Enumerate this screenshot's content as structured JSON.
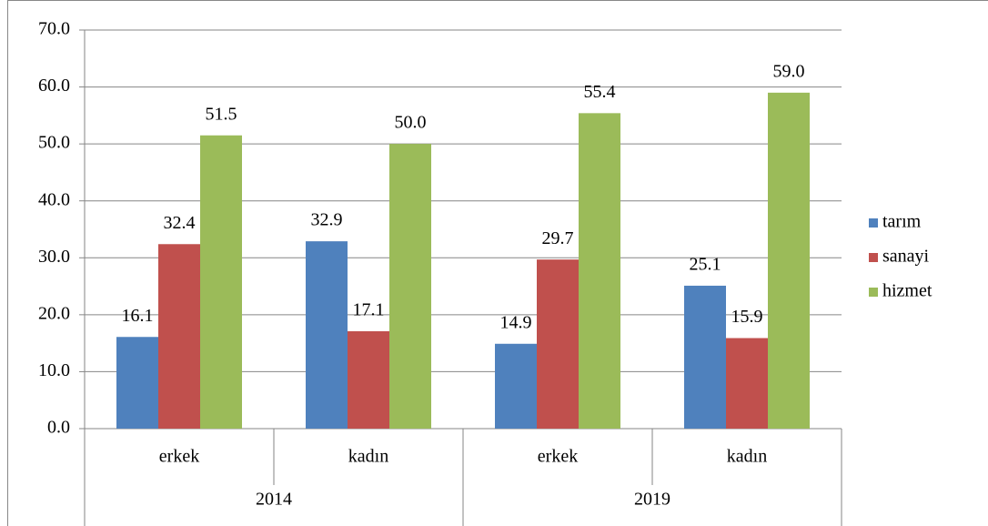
{
  "chart_data": {
    "type": "bar",
    "categories": [
      "erkek",
      "kadın",
      "erkek",
      "kadın"
    ],
    "groups": [
      "2014",
      "2019"
    ],
    "series": [
      {
        "name": "tarım",
        "color": "#4f81bd",
        "values": [
          16.1,
          32.9,
          14.9,
          25.1
        ],
        "value_labels": [
          "16.1",
          "32.9",
          "14.9",
          "25.1"
        ]
      },
      {
        "name": "sanayi",
        "color": "#c0504d",
        "values": [
          32.4,
          17.1,
          29.7,
          15.9
        ],
        "value_labels": [
          "32.4",
          "17.1",
          "29.7",
          "15.9"
        ]
      },
      {
        "name": "hizmet",
        "color": "#9bbb59",
        "values": [
          51.5,
          50.0,
          55.4,
          59.0
        ],
        "value_labels": [
          "51.5",
          "50.0",
          "55.4",
          "59.0"
        ]
      }
    ],
    "ylim": [
      0,
      70
    ],
    "yticks": [
      {
        "value": 0,
        "label": "0.0"
      },
      {
        "value": 10,
        "label": "10.0"
      },
      {
        "value": 20,
        "label": "20.0"
      },
      {
        "value": 30,
        "label": "30.0"
      },
      {
        "value": 40,
        "label": "40.0"
      },
      {
        "value": 50,
        "label": "50.0"
      },
      {
        "value": 60,
        "label": "60.0"
      },
      {
        "value": 70,
        "label": "70.0"
      }
    ],
    "grid": true,
    "legend": "right"
  }
}
